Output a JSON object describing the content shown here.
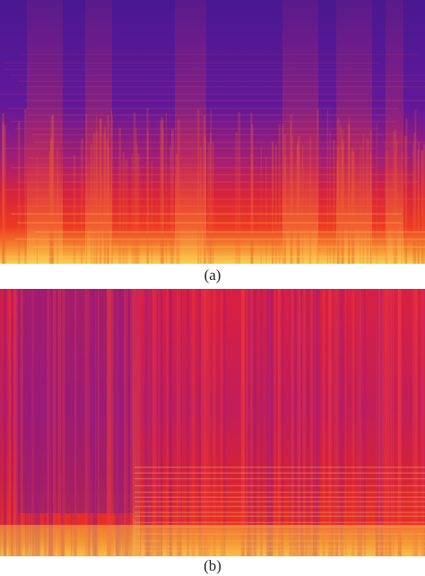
{
  "figures": [
    {
      "caption": "(a)"
    },
    {
      "caption": "(b)"
    }
  ]
}
